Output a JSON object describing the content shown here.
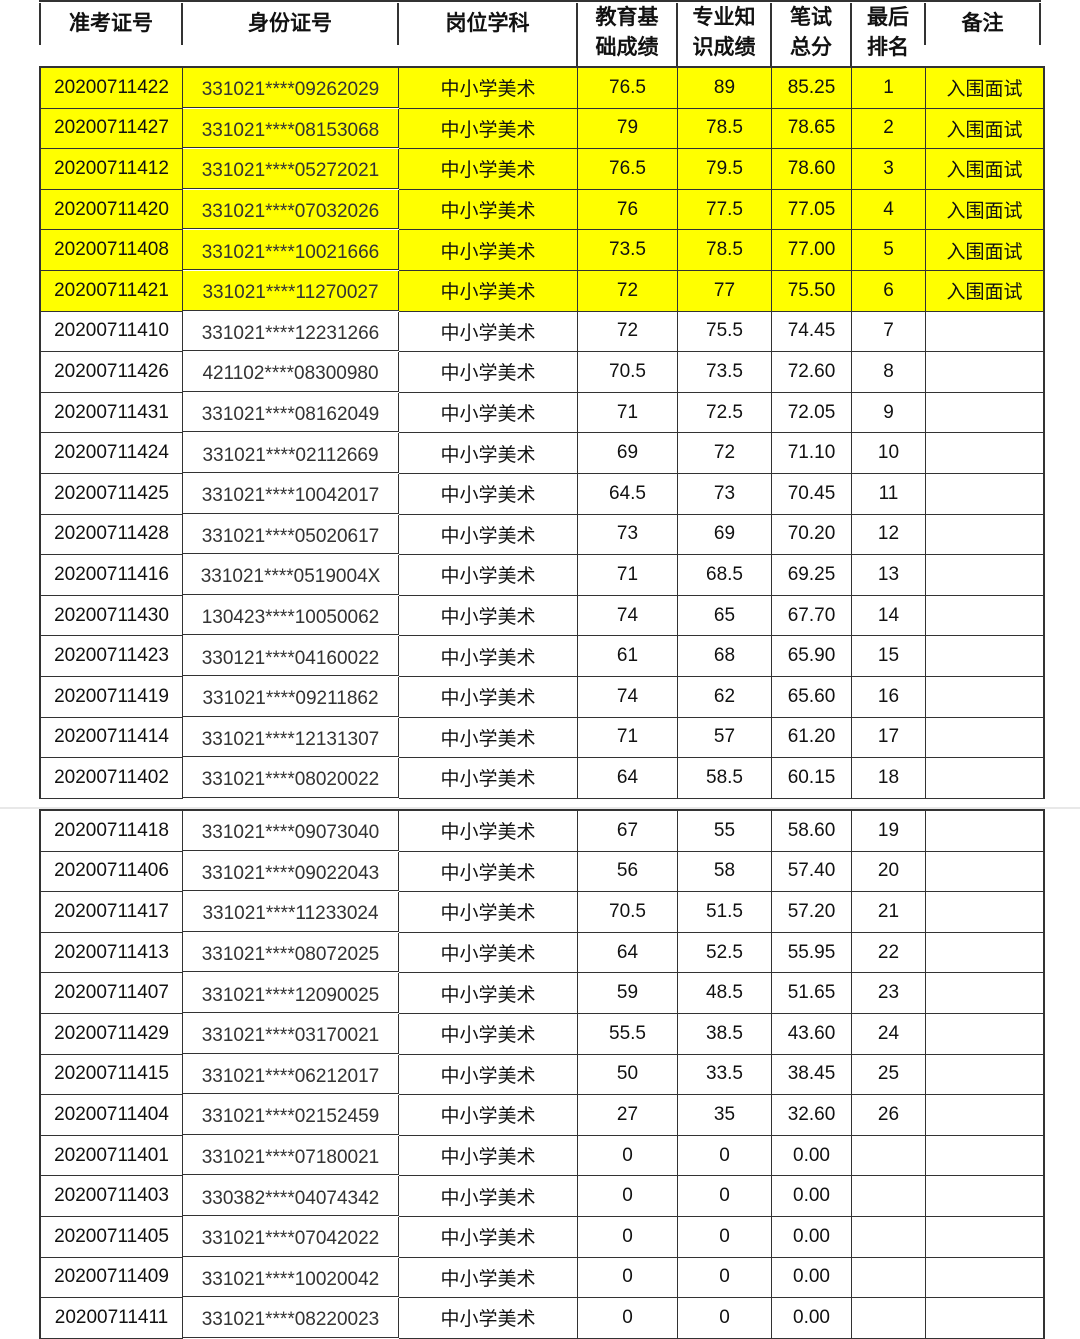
{
  "headers": [
    "准考证号",
    "身份证号",
    "岗位学科",
    "教育基\n础成绩",
    "专业知\n识成绩",
    "笔试\n总分",
    "最后\n排名",
    "备注"
  ],
  "highlight_color": "#ffff00",
  "rows": [
    [
      "20200711422",
      "331021****09262029",
      "中小学美术",
      "76.5",
      "89",
      "85.25",
      "1",
      "入围面试"
    ],
    [
      "20200711427",
      "331021****08153068",
      "中小学美术",
      "79",
      "78.5",
      "78.65",
      "2",
      "入围面试"
    ],
    [
      "20200711412",
      "331021****05272021",
      "中小学美术",
      "76.5",
      "79.5",
      "78.60",
      "3",
      "入围面试"
    ],
    [
      "20200711420",
      "331021****07032026",
      "中小学美术",
      "76",
      "77.5",
      "77.05",
      "4",
      "入围面试"
    ],
    [
      "20200711408",
      "331021****10021666",
      "中小学美术",
      "73.5",
      "78.5",
      "77.00",
      "5",
      "入围面试"
    ],
    [
      "20200711421",
      "331021****11270027",
      "中小学美术",
      "72",
      "77",
      "75.50",
      "6",
      "入围面试"
    ],
    [
      "20200711410",
      "331021****12231266",
      "中小学美术",
      "72",
      "75.5",
      "74.45",
      "7",
      ""
    ],
    [
      "20200711426",
      "421102****08300980",
      "中小学美术",
      "70.5",
      "73.5",
      "72.60",
      "8",
      ""
    ],
    [
      "20200711431",
      "331021****08162049",
      "中小学美术",
      "71",
      "72.5",
      "72.05",
      "9",
      ""
    ],
    [
      "20200711424",
      "331021****02112669",
      "中小学美术",
      "69",
      "72",
      "71.10",
      "10",
      ""
    ],
    [
      "20200711425",
      "331021****10042017",
      "中小学美术",
      "64.5",
      "73",
      "70.45",
      "11",
      ""
    ],
    [
      "20200711428",
      "331021****05020617",
      "中小学美术",
      "73",
      "69",
      "70.20",
      "12",
      ""
    ],
    [
      "20200711416",
      "331021****0519004X",
      "中小学美术",
      "71",
      "68.5",
      "69.25",
      "13",
      ""
    ],
    [
      "20200711430",
      "130423****10050062",
      "中小学美术",
      "74",
      "65",
      "67.70",
      "14",
      ""
    ],
    [
      "20200711423",
      "330121****04160022",
      "中小学美术",
      "61",
      "68",
      "65.90",
      "15",
      ""
    ],
    [
      "20200711419",
      "331021****09211862",
      "中小学美术",
      "74",
      "62",
      "65.60",
      "16",
      ""
    ],
    [
      "20200711414",
      "331021****12131307",
      "中小学美术",
      "71",
      "57",
      "61.20",
      "17",
      ""
    ],
    [
      "20200711402",
      "331021****08020022",
      "中小学美术",
      "64",
      "58.5",
      "60.15",
      "18",
      ""
    ],
    [
      "20200711418",
      "331021****09073040",
      "中小学美术",
      "67",
      "55",
      "58.60",
      "19",
      ""
    ],
    [
      "20200711406",
      "331021****09022043",
      "中小学美术",
      "56",
      "58",
      "57.40",
      "20",
      ""
    ],
    [
      "20200711417",
      "331021****11233024",
      "中小学美术",
      "70.5",
      "51.5",
      "57.20",
      "21",
      ""
    ],
    [
      "20200711413",
      "331021****08072025",
      "中小学美术",
      "64",
      "52.5",
      "55.95",
      "22",
      ""
    ],
    [
      "20200711407",
      "331021****12090025",
      "中小学美术",
      "59",
      "48.5",
      "51.65",
      "23",
      ""
    ],
    [
      "20200711429",
      "331021****03170021",
      "中小学美术",
      "55.5",
      "38.5",
      "43.60",
      "24",
      ""
    ],
    [
      "20200711415",
      "331021****06212017",
      "中小学美术",
      "50",
      "33.5",
      "38.45",
      "25",
      ""
    ],
    [
      "20200711404",
      "331021****02152459",
      "中小学美术",
      "27",
      "35",
      "32.60",
      "26",
      ""
    ],
    [
      "20200711401",
      "331021****07180021",
      "中小学美术",
      "0",
      "0",
      "0.00",
      "",
      ""
    ],
    [
      "20200711403",
      "330382****04074342",
      "中小学美术",
      "0",
      "0",
      "0.00",
      "",
      ""
    ],
    [
      "20200711405",
      "331021****07042022",
      "中小学美术",
      "0",
      "0",
      "0.00",
      "",
      ""
    ],
    [
      "20200711409",
      "331021****10020042",
      "中小学美术",
      "0",
      "0",
      "0.00",
      "",
      ""
    ],
    [
      "20200711411",
      "331021****08220023",
      "中小学美术",
      "0",
      "0",
      "0.00",
      "",
      ""
    ]
  ]
}
